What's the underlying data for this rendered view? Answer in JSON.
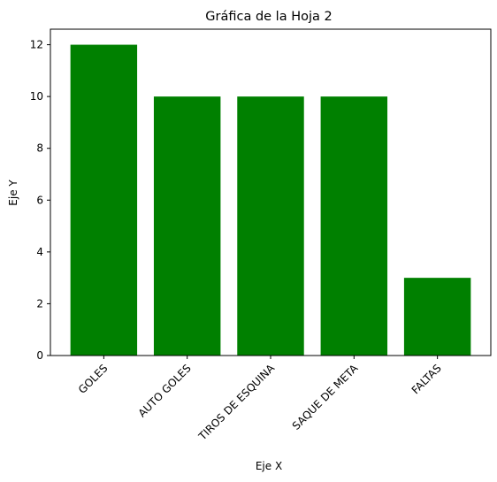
{
  "chart_data": {
    "type": "bar",
    "title": "Gráfica de la Hoja 2",
    "xlabel": "Eje X",
    "ylabel": "Eje Y",
    "categories": [
      "GOLES",
      "AUTO GOLES",
      "TIROS DE ESQUINA",
      "SAQUE DE META",
      "FALTAS"
    ],
    "values": [
      12,
      10,
      10,
      10,
      3
    ],
    "ylim": [
      0,
      12.6
    ],
    "yticks": [
      0,
      2,
      4,
      6,
      8,
      10,
      12
    ],
    "bar_color": "#008000",
    "grid": false,
    "legend": "none"
  }
}
